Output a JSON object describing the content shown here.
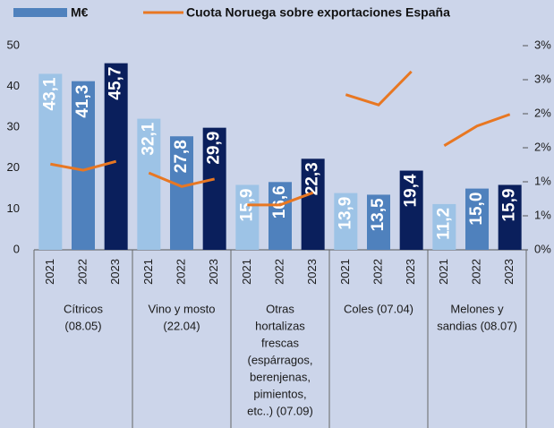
{
  "chart_data": {
    "type": "bar",
    "legend": [
      {
        "name": "M€",
        "color": "#4f81bd"
      },
      {
        "name": "Cuota Noruega sobre exportaciones España",
        "color": "#e87722"
      }
    ],
    "year_colors": [
      "#9dc3e6",
      "#4f81bd",
      "#0a1f5c"
    ],
    "groups": [
      {
        "label": [
          "Cítricos",
          "(08.05)"
        ],
        "years": [
          "2021",
          "2022",
          "2023"
        ],
        "values": [
          43.1,
          41.3,
          45.7
        ],
        "value_labels": [
          "43,1",
          "41,3",
          "45,7"
        ],
        "share": [
          1.26,
          1.17,
          1.3
        ]
      },
      {
        "label": [
          "Vino y mosto",
          "(22.04)"
        ],
        "years": [
          "2021",
          "2022",
          "2023"
        ],
        "values": [
          32.1,
          27.8,
          29.9
        ],
        "value_labels": [
          "32,1",
          "27,8",
          "29,9"
        ],
        "share": [
          1.13,
          0.93,
          1.04
        ]
      },
      {
        "label": [
          "Otras",
          "hortalizas",
          "frescas",
          "(espárragos,",
          "berenjenas,",
          "pimientos,",
          "etc..) (07.09)"
        ],
        "years": [
          "2021",
          "2022",
          "2023"
        ],
        "values": [
          15.9,
          16.6,
          22.3
        ],
        "value_labels": [
          "15,9",
          "16,6",
          "22,3"
        ],
        "share": [
          0.66,
          0.66,
          0.84
        ]
      },
      {
        "label": [
          "Coles (07.04)"
        ],
        "years": [
          "2021",
          "2022",
          "2023"
        ],
        "values": [
          13.9,
          13.5,
          19.4
        ],
        "value_labels": [
          "13,9",
          "13,5",
          "19,4"
        ],
        "share": [
          2.28,
          2.13,
          2.62
        ]
      },
      {
        "label": [
          "Melones y",
          "sandias  (08.07)"
        ],
        "years": [
          "2021",
          "2022",
          "2023"
        ],
        "values": [
          11.2,
          15.0,
          15.9
        ],
        "value_labels": [
          "11,2",
          "15,0",
          "15,9"
        ],
        "share": [
          1.53,
          1.82,
          1.99
        ]
      }
    ],
    "ylim": [
      0,
      50
    ],
    "yticks": [
      0,
      10,
      20,
      30,
      40,
      50
    ],
    "y2lim": [
      0,
      3
    ],
    "y2ticks": [
      {
        "value": 0,
        "label": "0%"
      },
      {
        "value": 0.5,
        "label": "1%"
      },
      {
        "value": 1,
        "label": "1%"
      },
      {
        "value": 1.5,
        "label": "2%"
      },
      {
        "value": 2,
        "label": "2%"
      },
      {
        "value": 2.5,
        "label": "3%"
      },
      {
        "value": 3,
        "label": "3%"
      }
    ]
  }
}
